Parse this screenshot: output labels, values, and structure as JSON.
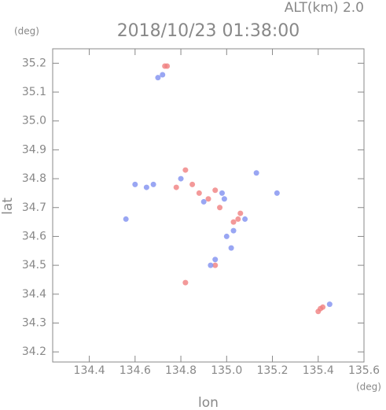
{
  "chart_data": {
    "type": "scatter",
    "title": "2018/10/23 01:38:00",
    "subtitle": "ALT(km) 2.0",
    "y_unit": "(deg)",
    "x_unit": "(deg)",
    "x_label": "lon",
    "y_label": "lat",
    "xlim": [
      134.24,
      135.6
    ],
    "ylim": [
      34.165,
      35.25
    ],
    "xticks": [
      134.4,
      134.6,
      134.8,
      {
        "value": 135,
        "label": "135.0"
      },
      135.2,
      135.4,
      135.6
    ],
    "yticks": [
      34.2,
      34.3,
      34.4,
      34.5,
      34.6,
      34.7,
      34.8,
      34.9,
      {
        "value": 35,
        "label": "35.0"
      },
      35.1,
      35.2
    ],
    "series": [
      {
        "color": "#f08080",
        "x": [
          134.74,
          134.73,
          134.82,
          134.85,
          134.88,
          134.92,
          134.95,
          135.03,
          135.05,
          135.06,
          134.95,
          134.82,
          135.4,
          135.41,
          135.42,
          134.78,
          134.97
        ],
        "values": [
          35.19,
          35.19,
          34.83,
          34.78,
          34.75,
          34.73,
          34.76,
          34.65,
          34.66,
          34.68,
          34.5,
          34.44,
          34.34,
          34.35,
          34.355,
          34.77,
          34.7
        ]
      },
      {
        "color": "#8090f0",
        "x": [
          134.7,
          134.72,
          134.6,
          134.65,
          134.68,
          134.8,
          134.9,
          134.98,
          135.0,
          135.03,
          134.95,
          134.93,
          135.45,
          135.13,
          135.08,
          134.56,
          135.22,
          134.99,
          135.02
        ],
        "values": [
          35.15,
          35.16,
          34.78,
          34.77,
          34.78,
          34.8,
          34.72,
          34.75,
          34.6,
          34.62,
          34.52,
          34.5,
          34.365,
          34.82,
          34.66,
          34.66,
          34.75,
          34.73,
          34.56
        ]
      }
    ]
  }
}
